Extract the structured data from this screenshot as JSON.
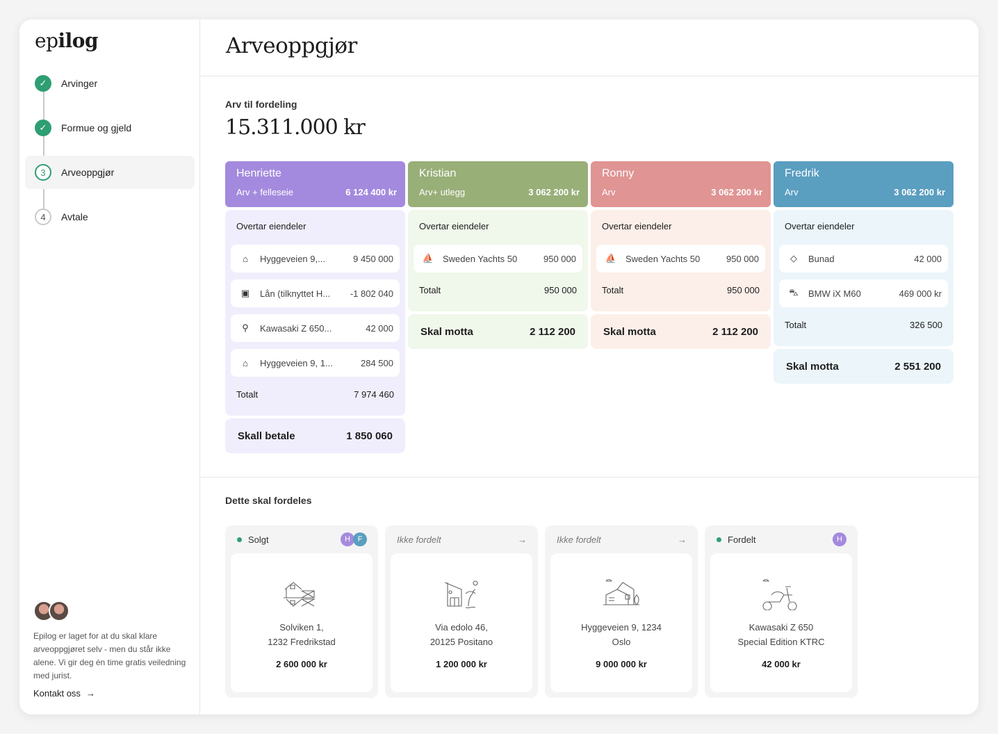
{
  "app": {
    "logo": "epilog"
  },
  "sidebar": {
    "steps": [
      {
        "label": "Arvinger",
        "state": "done",
        "num": "1"
      },
      {
        "label": "Formue og gjeld",
        "state": "done",
        "num": "2"
      },
      {
        "label": "Arveoppgjør",
        "state": "current",
        "num": "3"
      },
      {
        "label": "Avtale",
        "state": "todo",
        "num": "4"
      }
    ],
    "help_text": "Epilog er laget for at du skal klare arveoppgjøret selv - men du står ikke alene. Vi gir deg én time gratis veiledning med jurist.",
    "contact_label": "Kontakt oss",
    "contact_arrow": "→"
  },
  "header": {
    "title": "Arveoppgjør"
  },
  "summary": {
    "label": "Arv til fordeling",
    "total": "15.311.000 kr"
  },
  "heirs": [
    {
      "name": "Henriette",
      "type": "Arv + felleseie",
      "amount": "6 124 400 kr",
      "color": "#a48ade",
      "bg": "#f0eefc",
      "assets_title": "Overtar eiendeler",
      "assets": [
        {
          "icon": "house-icon",
          "glyph": "⌂",
          "name": "Hyggeveien 9,...",
          "value": "9 450 000"
        },
        {
          "icon": "loan-icon",
          "glyph": "▣",
          "name": "Lån (tilknyttet H...",
          "value": "-1 802 040"
        },
        {
          "icon": "motorcycle-icon",
          "glyph": "⚲",
          "name": "Kawasaki Z 650...",
          "value": "42 000"
        },
        {
          "icon": "house-icon",
          "glyph": "⌂",
          "name": "Hyggeveien 9, 1...",
          "value": "284 500"
        }
      ],
      "total_label": "Totalt",
      "total": "7 974 460",
      "result_label": "Skall betale",
      "result": "1 850 060"
    },
    {
      "name": "Kristian",
      "type": "Arv+ utlegg",
      "amount": "3 062 200 kr",
      "color": "#98af78",
      "bg": "#f0f7eb",
      "assets_title": "Overtar eiendeler",
      "assets": [
        {
          "icon": "sailboat-icon",
          "glyph": "⛵",
          "name": "Sweden Yachts 50",
          "value": "950 000"
        }
      ],
      "total_label": "Totalt",
      "total": "950 000",
      "result_label": "Skal motta",
      "result": "2 112 200"
    },
    {
      "name": "Ronny",
      "type": "Arv",
      "amount": "3 062 200 kr",
      "color": "#e09494",
      "bg": "#fcefe9",
      "assets_title": "Overtar eiendeler",
      "assets": [
        {
          "icon": "sailboat-icon",
          "glyph": "⛵",
          "name": "Sweden Yachts 50",
          "value": "950 000"
        }
      ],
      "total_label": "Totalt",
      "total": "950 000",
      "result_label": "Skal motta",
      "result": "2 112 200"
    },
    {
      "name": "Fredrik",
      "type": "Arv",
      "amount": "3 062 200 kr",
      "color": "#5a9ec0",
      "bg": "#ebf5fa",
      "assets_title": "Overtar eiendeler",
      "assets": [
        {
          "icon": "diamond-icon",
          "glyph": "◇",
          "name": "Bunad",
          "value": "42 000"
        },
        {
          "icon": "car-icon",
          "glyph": "⛍",
          "name": "BMW iX M60",
          "value": "469 000 kr"
        }
      ],
      "total_label": "Totalt",
      "total": "326 500",
      "result_label": "Skal motta",
      "result": "2 551 200"
    }
  ],
  "distribution": {
    "title": "Dette skal fordeles",
    "cards": [
      {
        "status": "Solgt",
        "status_type": "dot",
        "avatars": [
          {
            "letter": "H",
            "color": "#a48ade"
          },
          {
            "letter": "F",
            "color": "#5a9ec0"
          }
        ],
        "icon": "cabin-icon",
        "line1": "Solviken 1,",
        "line2": "1232 Fredrikstad",
        "price": "2 600 000 kr"
      },
      {
        "status": "Ikke fordelt",
        "status_type": "italic",
        "arrow": "→",
        "icon": "beach-house-icon",
        "line1": "Via edolo 46,",
        "line2": "20125 Positano",
        "price": "1 200 000 kr"
      },
      {
        "status": "Ikke fordelt",
        "status_type": "italic",
        "arrow": "→",
        "icon": "house-icon",
        "line1": "Hyggeveien 9, 1234",
        "line2": "Oslo",
        "price": "9 000 000 kr"
      },
      {
        "status": "Fordelt",
        "status_type": "dot",
        "avatars": [
          {
            "letter": "H",
            "color": "#a48ade"
          }
        ],
        "icon": "scooter-icon",
        "line1": "Kawasaki Z 650",
        "line2": "Special Edition KTRC",
        "price": "42 000 kr"
      }
    ]
  }
}
